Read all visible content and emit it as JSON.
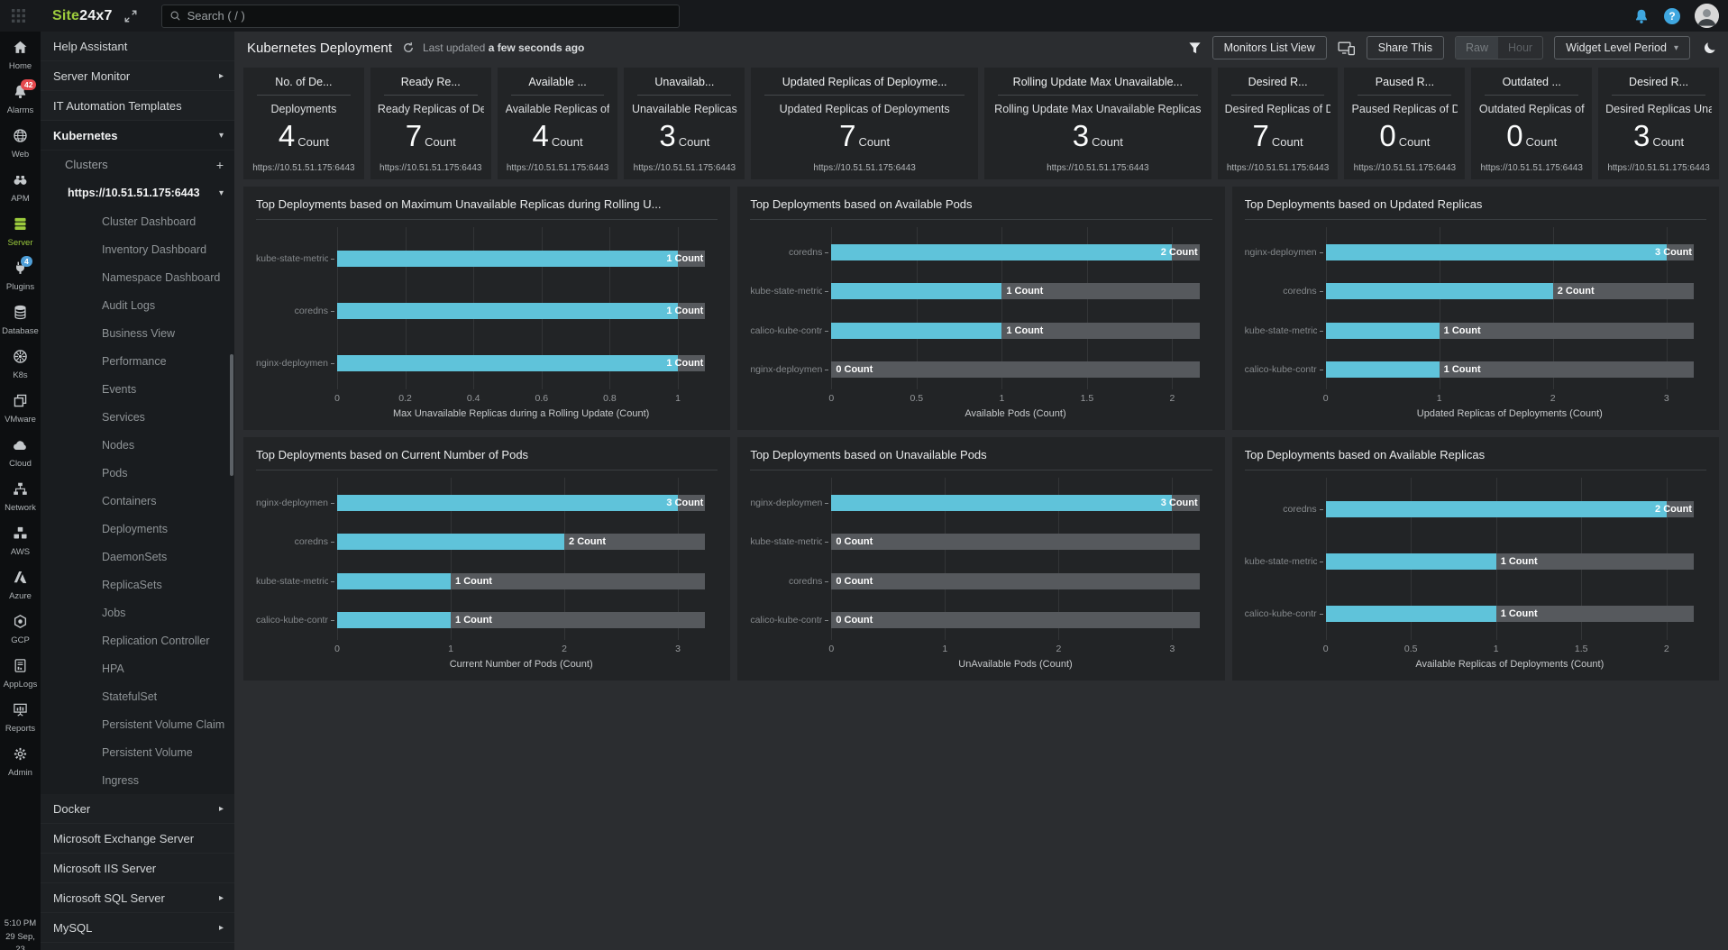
{
  "topbar": {
    "logo_site": "Site",
    "logo_247": "24x7",
    "search_placeholder": "Search ( / )"
  },
  "rail": {
    "items": [
      {
        "label": "Home",
        "icon": "home"
      },
      {
        "label": "Alarms",
        "icon": "bell",
        "badge": "42",
        "badge_color": "#e5484d"
      },
      {
        "label": "Web",
        "icon": "globe"
      },
      {
        "label": "APM",
        "icon": "binoculars"
      },
      {
        "label": "Server",
        "icon": "server",
        "active": true
      },
      {
        "label": "Plugins",
        "icon": "plug",
        "badge": "4",
        "badge_color": "#4f9fd8"
      },
      {
        "label": "Database",
        "icon": "database"
      },
      {
        "label": "K8s",
        "icon": "k8s"
      },
      {
        "label": "VMware",
        "icon": "vmware"
      },
      {
        "label": "Cloud",
        "icon": "cloud"
      },
      {
        "label": "Network",
        "icon": "network"
      },
      {
        "label": "AWS",
        "icon": "aws"
      },
      {
        "label": "Azure",
        "icon": "azure"
      },
      {
        "label": "GCP",
        "icon": "gcp"
      },
      {
        "label": "AppLogs",
        "icon": "applogs"
      },
      {
        "label": "Reports",
        "icon": "reports"
      },
      {
        "label": "Admin",
        "icon": "gear"
      }
    ],
    "time": "5:10 PM",
    "date": "29 Sep, 23"
  },
  "sidebar": {
    "top_items": [
      {
        "label": "Help Assistant"
      },
      {
        "label": "Server Monitor",
        "arrow": "right"
      },
      {
        "label": "IT Automation Templates"
      }
    ],
    "kubernetes": {
      "label": "Kubernetes",
      "clusters_label": "Clusters",
      "cluster_url": "https://10.51.51.175:6443",
      "items": [
        "Cluster Dashboard",
        "Inventory Dashboard",
        "Namespace Dashboard",
        "Audit Logs",
        "Business View",
        "Performance",
        "Events",
        "Services",
        "Nodes",
        "Pods",
        "Containers",
        "Deployments",
        "DaemonSets",
        "ReplicaSets",
        "Jobs",
        "Replication Controller",
        "HPA",
        "StatefulSet",
        "Persistent Volume Claim",
        "Persistent Volume",
        "Ingress"
      ]
    },
    "bottom_items": [
      {
        "label": "Docker",
        "arrow": "right"
      },
      {
        "label": "Microsoft Exchange Server"
      },
      {
        "label": "Microsoft IIS Server"
      },
      {
        "label": "Microsoft SQL Server",
        "arrow": "right"
      },
      {
        "label": "MySQL",
        "arrow": "right"
      }
    ]
  },
  "page": {
    "title": "Kubernetes Deployment",
    "last_updated_prefix": "Last updated",
    "last_updated_value": "a few seconds ago"
  },
  "toolbar": {
    "monitors_list_view": "Monitors List View",
    "share_this": "Share This",
    "raw": "Raw",
    "hour": "Hour",
    "widget_level_period": "Widget Level Period"
  },
  "cards": [
    {
      "title": "No. of De...",
      "subtitle": "Deployments",
      "value": "4",
      "unit": "Count",
      "source": "https://10.51.51.175:6443",
      "wide": false
    },
    {
      "title": "Ready Re...",
      "subtitle": "Ready Replicas of De",
      "value": "7",
      "unit": "Count",
      "source": "https://10.51.51.175:6443",
      "wide": false
    },
    {
      "title": "Available ...",
      "subtitle": "Available Replicas of",
      "value": "4",
      "unit": "Count",
      "source": "https://10.51.51.175:6443",
      "wide": false
    },
    {
      "title": "Unavailab...",
      "subtitle": "Unavailable Replicas",
      "value": "3",
      "unit": "Count",
      "source": "https://10.51.51.175:6443",
      "wide": false
    },
    {
      "title": "Updated Replicas of Deployme...",
      "subtitle": "Updated Replicas of Deployments",
      "value": "7",
      "unit": "Count",
      "source": "https://10.51.51.175:6443",
      "wide": true
    },
    {
      "title": "Rolling Update Max Unavailable...",
      "subtitle": "Rolling Update Max Unavailable Replicas",
      "value": "3",
      "unit": "Count",
      "source": "https://10.51.51.175:6443",
      "wide": true
    },
    {
      "title": "Desired R...",
      "subtitle": "Desired Replicas of D",
      "value": "7",
      "unit": "Count",
      "source": "https://10.51.51.175:6443",
      "wide": false
    },
    {
      "title": "Paused R...",
      "subtitle": "Paused Replicas of D",
      "value": "0",
      "unit": "Count",
      "source": "https://10.51.51.175:6443",
      "wide": false
    },
    {
      "title": "Outdated ...",
      "subtitle": "Outdated Replicas of",
      "value": "0",
      "unit": "Count",
      "source": "https://10.51.51.175:6443",
      "wide": false
    },
    {
      "title": "Desired R...",
      "subtitle": "Desired Replicas Una",
      "value": "3",
      "unit": "Count",
      "source": "https://10.51.51.175:6443",
      "wide": false
    }
  ],
  "chart_data": [
    {
      "type": "bar",
      "orientation": "horizontal",
      "title": "Top Deployments based on Maximum Unavailable Replicas during Rolling U...",
      "categories": [
        "kube-state-metrics",
        "coredns",
        "nginx-deployment"
      ],
      "values": [
        1,
        1,
        1
      ],
      "unit": "Count",
      "xticks": [
        0,
        0.2,
        0.4,
        0.6,
        0.8,
        1
      ],
      "xlim": [
        0,
        1
      ],
      "xlabel": "Max Unavailable Replicas during a Rolling Update (Count)",
      "grid": true,
      "legend": false
    },
    {
      "type": "bar",
      "orientation": "horizontal",
      "title": "Top Deployments based on Available Pods",
      "categories": [
        "coredns",
        "kube-state-metrics",
        "calico-kube-controllers",
        "nginx-deployment"
      ],
      "values": [
        2,
        1,
        1,
        0
      ],
      "unit": "Count",
      "xticks": [
        0,
        0.5,
        1,
        1.5,
        2
      ],
      "xlim": [
        0,
        2
      ],
      "xlabel": "Available Pods (Count)",
      "grid": true,
      "legend": false
    },
    {
      "type": "bar",
      "orientation": "horizontal",
      "title": "Top Deployments based on Updated Replicas",
      "categories": [
        "nginx-deployment",
        "coredns",
        "kube-state-metrics",
        "calico-kube-controllers"
      ],
      "values": [
        3,
        2,
        1,
        1
      ],
      "unit": "Count",
      "xticks": [
        0,
        1,
        2,
        3
      ],
      "xlim": [
        0,
        3
      ],
      "xlabel": "Updated Replicas of Deployments (Count)",
      "grid": true,
      "legend": false
    },
    {
      "type": "bar",
      "orientation": "horizontal",
      "title": "Top Deployments based on Current Number of Pods",
      "categories": [
        "nginx-deployment",
        "coredns",
        "kube-state-metrics",
        "calico-kube-controllers"
      ],
      "values": [
        3,
        2,
        1,
        1
      ],
      "unit": "Count",
      "xticks": [
        0,
        1,
        2,
        3
      ],
      "xlim": [
        0,
        3
      ],
      "xlabel": "Current Number of Pods (Count)",
      "grid": true,
      "legend": false
    },
    {
      "type": "bar",
      "orientation": "horizontal",
      "title": "Top Deployments based on Unavailable Pods",
      "categories": [
        "nginx-deployment",
        "kube-state-metrics",
        "coredns",
        "calico-kube-controllers"
      ],
      "values": [
        3,
        0,
        0,
        0
      ],
      "unit": "Count",
      "xticks": [
        0,
        1,
        2,
        3
      ],
      "xlim": [
        0,
        3
      ],
      "xlabel": "UnAvailable Pods (Count)",
      "grid": true,
      "legend": false
    },
    {
      "type": "bar",
      "orientation": "horizontal",
      "title": "Top Deployments based on Available Replicas",
      "categories": [
        "coredns",
        "kube-state-metrics",
        "calico-kube-controllers"
      ],
      "values": [
        2,
        1,
        1
      ],
      "unit": "Count",
      "xticks": [
        0,
        0.5,
        1,
        1.5,
        2
      ],
      "xlim": [
        0,
        2
      ],
      "xlabel": "Available Replicas of Deployments (Count)",
      "grid": true,
      "legend": false
    }
  ],
  "colors": {
    "accent_green": "#9ccc3d",
    "bar_cyan": "#5fc3da",
    "bar_track": "#56595d",
    "badge_red": "#e5484d",
    "badge_blue": "#4f9fd8",
    "icon_blue": "#3fa7e0",
    "panel_bg": "#222426",
    "main_bg": "#2b2d30"
  }
}
